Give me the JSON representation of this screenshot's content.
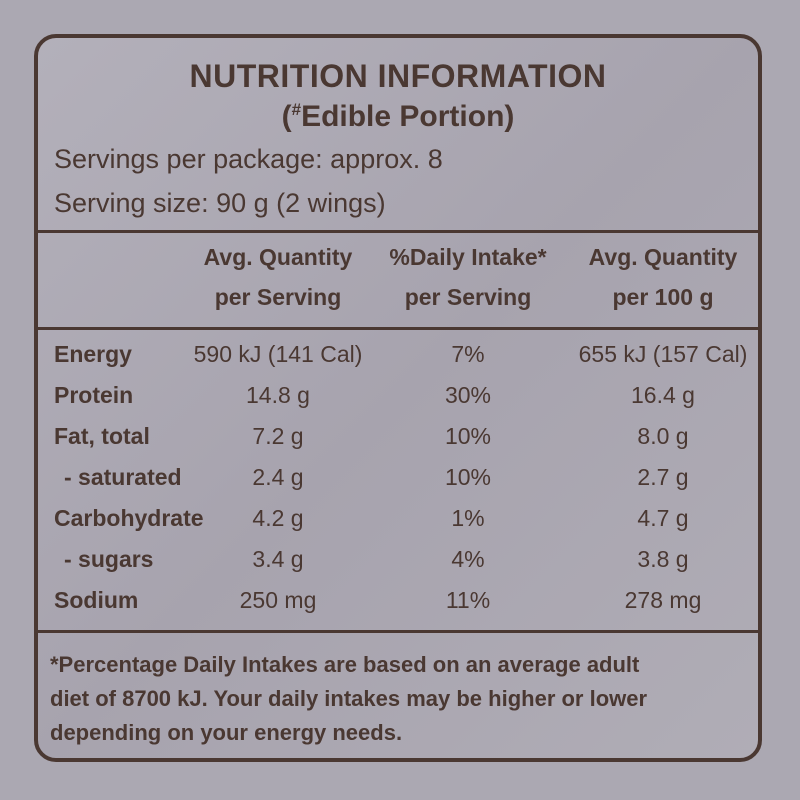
{
  "header": {
    "title": "NUTRITION INFORMATION",
    "subtitle": [
      "(",
      "#",
      "Edible Portion)"
    ]
  },
  "servings": {
    "per_package": "Servings per package: approx. 8",
    "size": "Serving size: 90 g (2 wings)"
  },
  "table": {
    "columns": [
      [
        "Avg. Quantity",
        "per Serving"
      ],
      [
        "%Daily Intake*",
        "per Serving"
      ],
      [
        "Avg. Quantity",
        "per 100 g"
      ]
    ],
    "rows": [
      [
        "Energy",
        "590 kJ (141 Cal)",
        "7%",
        "655 kJ (157 Cal)"
      ],
      [
        "Protein",
        "14.8 g",
        "30%",
        "16.4 g"
      ],
      [
        "Fat, total",
        "7.2 g",
        "10%",
        "8.0 g"
      ],
      [
        "- saturated",
        "2.4 g",
        "10%",
        "2.7 g"
      ],
      [
        "Carbohydrate",
        "4.2 g",
        "1%",
        "4.7 g"
      ],
      [
        "- sugars",
        "3.4 g",
        "4%",
        "3.8 g"
      ],
      [
        "Sodium",
        "250 mg",
        "11%",
        "278 mg"
      ]
    ]
  },
  "footnote": [
    "*Percentage Daily Intakes are based on an average adult",
    "diet of 8700 kJ. Your daily intakes may be higher or lower",
    "depending on your energy needs."
  ]
}
